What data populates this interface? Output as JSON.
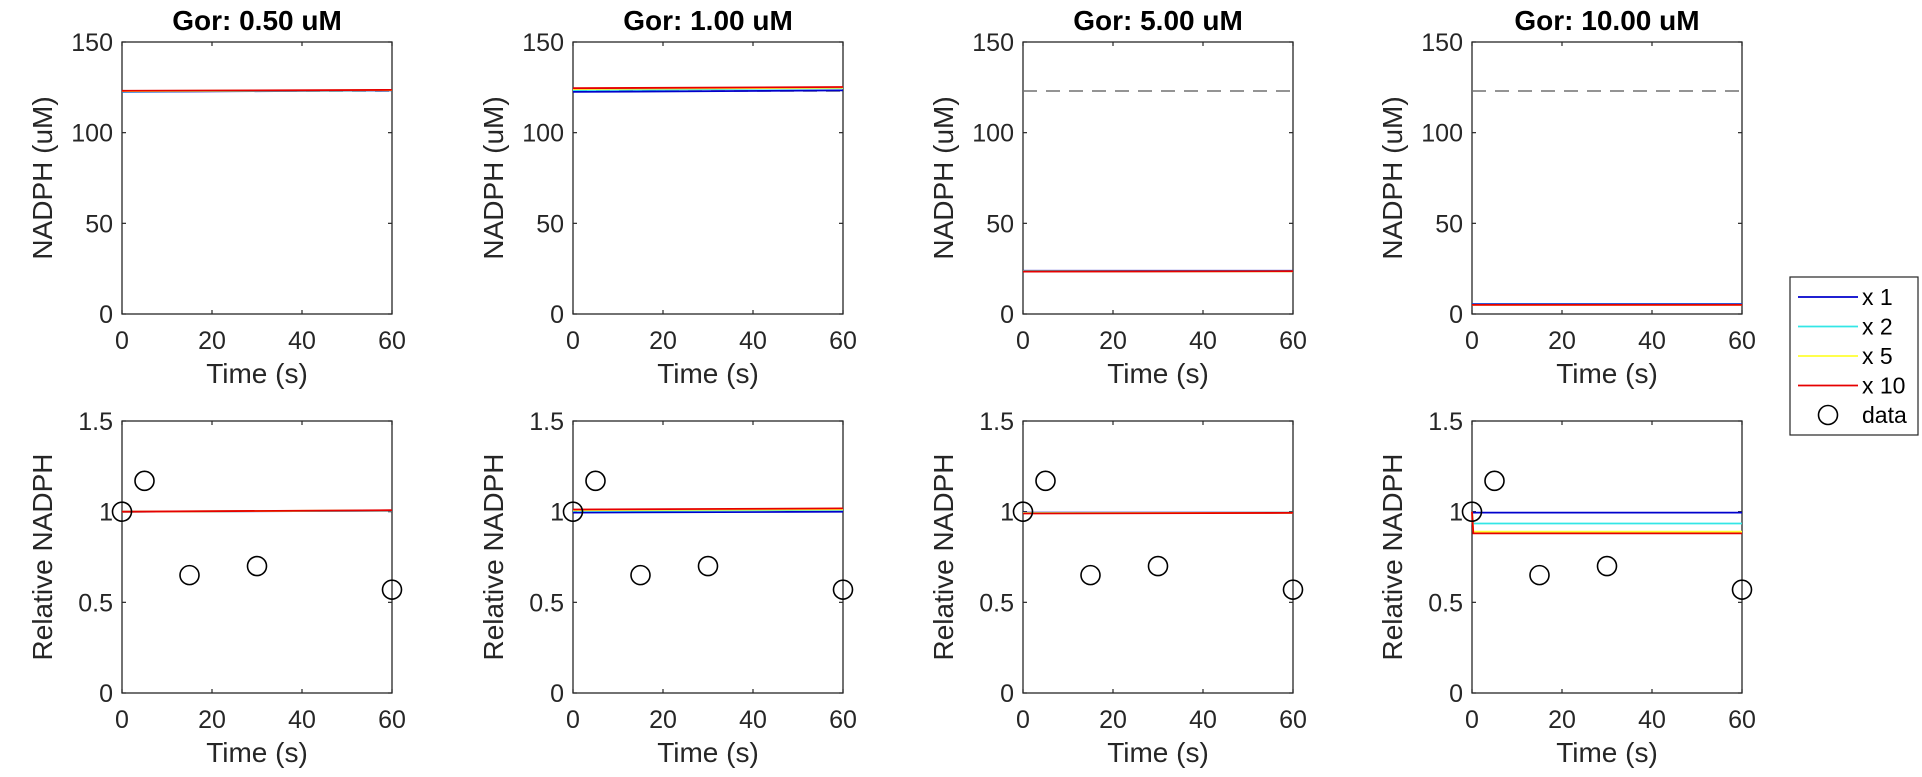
{
  "chart_data": {
    "type": "line",
    "legend": {
      "placement": "right",
      "entries": [
        {
          "label": "x 1",
          "kind": "line",
          "color": "#0000cc"
        },
        {
          "label": "x 2",
          "kind": "line",
          "color": "#33e6e6"
        },
        {
          "label": "x 5",
          "kind": "line",
          "color": "#ffff33"
        },
        {
          "label": "x 10",
          "kind": "line",
          "color": "#e60000"
        },
        {
          "label": "data",
          "kind": "marker",
          "color": "#000000"
        }
      ]
    },
    "panels": [
      {
        "id": "p11",
        "row": 0,
        "col": 0,
        "title": "Gor: 0.50 uM",
        "xlabel": "Time (s)",
        "ylabel": "NADPH (uM)",
        "xlim": [
          0,
          60
        ],
        "ylim": [
          0,
          150
        ],
        "xticks": [
          0,
          20,
          40,
          60
        ],
        "yticks": [
          0,
          50,
          100,
          150
        ],
        "yticklabels": [
          "0",
          "50",
          "100",
          "150"
        ],
        "reference": {
          "y": 123,
          "dashed": true
        },
        "series": [
          {
            "color": "#0000cc",
            "x": [
              0,
              60
            ],
            "y": [
              122.5,
              123.3
            ]
          },
          {
            "color": "#33e6e6",
            "x": [
              0,
              60
            ],
            "y": [
              122.7,
              123.4
            ]
          },
          {
            "color": "#ffff33",
            "x": [
              0,
              60
            ],
            "y": [
              122.9,
              123.5
            ]
          },
          {
            "color": "#e60000",
            "x": [
              0,
              60
            ],
            "y": [
              123.1,
              123.6
            ]
          }
        ],
        "markers": []
      },
      {
        "id": "p12",
        "row": 0,
        "col": 1,
        "title": "Gor: 1.00 uM",
        "xlabel": "Time (s)",
        "ylabel": "NADPH (uM)",
        "xlim": [
          0,
          60
        ],
        "ylim": [
          0,
          150
        ],
        "xticks": [
          0,
          20,
          40,
          60
        ],
        "yticks": [
          0,
          50,
          100,
          150
        ],
        "yticklabels": [
          "0",
          "50",
          "100",
          "150"
        ],
        "reference": {
          "y": 123,
          "dashed": true
        },
        "series": [
          {
            "color": "#0000cc",
            "x": [
              0,
              60
            ],
            "y": [
              122.5,
              123.3
            ]
          },
          {
            "color": "#33e6e6",
            "x": [
              0,
              60
            ],
            "y": [
              123.5,
              124.5
            ]
          },
          {
            "color": "#ffff33",
            "x": [
              0,
              60
            ],
            "y": [
              124.0,
              124.8
            ]
          },
          {
            "color": "#e60000",
            "x": [
              0,
              60
            ],
            "y": [
              124.5,
              125.2
            ]
          }
        ],
        "markers": []
      },
      {
        "id": "p13",
        "row": 0,
        "col": 2,
        "title": "Gor: 5.00 uM",
        "xlabel": "Time (s)",
        "ylabel": "NADPH (uM)",
        "xlim": [
          0,
          60
        ],
        "ylim": [
          0,
          150
        ],
        "xticks": [
          0,
          20,
          40,
          60
        ],
        "yticks": [
          0,
          50,
          100,
          150
        ],
        "yticklabels": [
          "0",
          "50",
          "100",
          "150"
        ],
        "reference": {
          "y": 123,
          "dashed": true
        },
        "series": [
          {
            "color": "#0000cc",
            "x": [
              0,
              60
            ],
            "y": [
              23.8,
              23.8
            ]
          },
          {
            "color": "#33e6e6",
            "x": [
              0,
              60
            ],
            "y": [
              23.6,
              23.6
            ]
          },
          {
            "color": "#ffff33",
            "x": [
              0,
              60
            ],
            "y": [
              23.5,
              23.5
            ]
          },
          {
            "color": "#e60000",
            "x": [
              0,
              60
            ],
            "y": [
              23.4,
              23.6
            ]
          }
        ],
        "markers": []
      },
      {
        "id": "p14",
        "row": 0,
        "col": 3,
        "title": "Gor: 10.00 uM",
        "xlabel": "Time (s)",
        "ylabel": "NADPH (uM)",
        "xlim": [
          0,
          60
        ],
        "ylim": [
          0,
          150
        ],
        "xticks": [
          0,
          20,
          40,
          60
        ],
        "yticks": [
          0,
          50,
          100,
          150
        ],
        "yticklabels": [
          "0",
          "50",
          "100",
          "150"
        ],
        "reference": {
          "y": 123,
          "dashed": true
        },
        "series": [
          {
            "color": "#0000cc",
            "x": [
              0,
              60
            ],
            "y": [
              5.5,
              5.5
            ]
          },
          {
            "color": "#33e6e6",
            "x": [
              0,
              60
            ],
            "y": [
              5.2,
              5.2
            ]
          },
          {
            "color": "#ffff33",
            "x": [
              0,
              60
            ],
            "y": [
              5.0,
              5.0
            ]
          },
          {
            "color": "#e60000",
            "x": [
              0,
              60
            ],
            "y": [
              5.0,
              5.0
            ]
          }
        ],
        "markers": []
      },
      {
        "id": "p21",
        "row": 1,
        "col": 0,
        "title": "",
        "xlabel": "Time (s)",
        "ylabel": "Relative NADPH",
        "xlim": [
          0,
          60
        ],
        "ylim": [
          0,
          1.5
        ],
        "xticks": [
          0,
          20,
          40,
          60
        ],
        "yticks": [
          0,
          0.5,
          1,
          1.5
        ],
        "yticklabels": [
          "0",
          "0.5",
          "1",
          "1.5"
        ],
        "reference": null,
        "series": [
          {
            "color": "#0000cc",
            "x": [
              0,
              60
            ],
            "y": [
              1.0,
              1.005
            ]
          },
          {
            "color": "#33e6e6",
            "x": [
              0,
              60
            ],
            "y": [
              1.0,
              1.006
            ]
          },
          {
            "color": "#ffff33",
            "x": [
              0,
              60
            ],
            "y": [
              1.0,
              1.007
            ]
          },
          {
            "color": "#e60000",
            "x": [
              0,
              60
            ],
            "y": [
              1.0,
              1.008
            ]
          }
        ],
        "markers": [
          {
            "x": 0,
            "y": 1.0
          },
          {
            "x": 5,
            "y": 1.17
          },
          {
            "x": 15,
            "y": 0.65
          },
          {
            "x": 30,
            "y": 0.7
          },
          {
            "x": 60,
            "y": 0.57
          }
        ]
      },
      {
        "id": "p22",
        "row": 1,
        "col": 1,
        "title": "",
        "xlabel": "Time (s)",
        "ylabel": "Relative NADPH",
        "xlim": [
          0,
          60
        ],
        "ylim": [
          0,
          1.5
        ],
        "xticks": [
          0,
          20,
          40,
          60
        ],
        "yticks": [
          0,
          0.5,
          1,
          1.5
        ],
        "yticklabels": [
          "0",
          "0.5",
          "1",
          "1.5"
        ],
        "reference": null,
        "series": [
          {
            "color": "#0000cc",
            "x": [
              0,
              60
            ],
            "y": [
              0.995,
              1.0
            ]
          },
          {
            "color": "#33e6e6",
            "x": [
              0,
              60
            ],
            "y": [
              1.004,
              1.01
            ]
          },
          {
            "color": "#ffff33",
            "x": [
              0,
              60
            ],
            "y": [
              1.008,
              1.013
            ]
          },
          {
            "color": "#e60000",
            "x": [
              0,
              60
            ],
            "y": [
              1.012,
              1.018
            ]
          }
        ],
        "markers": [
          {
            "x": 0,
            "y": 1.0
          },
          {
            "x": 5,
            "y": 1.17
          },
          {
            "x": 15,
            "y": 0.65
          },
          {
            "x": 30,
            "y": 0.7
          },
          {
            "x": 60,
            "y": 0.57
          }
        ]
      },
      {
        "id": "p23",
        "row": 1,
        "col": 2,
        "title": "",
        "xlabel": "Time (s)",
        "ylabel": "Relative NADPH",
        "xlim": [
          0,
          60
        ],
        "ylim": [
          0,
          1.5
        ],
        "xticks": [
          0,
          20,
          40,
          60
        ],
        "yticks": [
          0,
          0.5,
          1,
          1.5
        ],
        "yticklabels": [
          "0",
          "0.5",
          "1",
          "1.5"
        ],
        "reference": null,
        "series": [
          {
            "color": "#0000cc",
            "x": [
              0,
              60
            ],
            "y": [
              0.995,
              0.995
            ]
          },
          {
            "color": "#33e6e6",
            "x": [
              0,
              60
            ],
            "y": [
              0.993,
              0.994
            ]
          },
          {
            "color": "#ffff33",
            "x": [
              0,
              60
            ],
            "y": [
              0.992,
              0.994
            ]
          },
          {
            "color": "#e60000",
            "x": [
              0,
              60
            ],
            "y": [
              0.99,
              0.993
            ]
          }
        ],
        "markers": [
          {
            "x": 0,
            "y": 1.0
          },
          {
            "x": 5,
            "y": 1.17
          },
          {
            "x": 15,
            "y": 0.65
          },
          {
            "x": 30,
            "y": 0.7
          },
          {
            "x": 60,
            "y": 0.57
          }
        ]
      },
      {
        "id": "p24",
        "row": 1,
        "col": 3,
        "title": "",
        "xlabel": "Time (s)",
        "ylabel": "Relative NADPH",
        "xlim": [
          0,
          60
        ],
        "ylim": [
          0,
          1.5
        ],
        "xticks": [
          0,
          20,
          40,
          60
        ],
        "yticks": [
          0,
          0.5,
          1,
          1.5
        ],
        "yticklabels": [
          "0",
          "0.5",
          "1",
          "1.5"
        ],
        "reference": null,
        "series": [
          {
            "color": "#0000cc",
            "x": [
              0,
              0.3,
              60
            ],
            "y": [
              1.0,
              0.995,
              0.995
            ]
          },
          {
            "color": "#33e6e6",
            "x": [
              0,
              0.3,
              60
            ],
            "y": [
              1.0,
              0.935,
              0.935
            ]
          },
          {
            "color": "#ffff33",
            "x": [
              0,
              0.3,
              60
            ],
            "y": [
              1.0,
              0.89,
              0.89
            ]
          },
          {
            "color": "#e60000",
            "x": [
              0,
              0.3,
              60
            ],
            "y": [
              1.0,
              0.88,
              0.88
            ]
          }
        ],
        "markers": [
          {
            "x": 0,
            "y": 1.0
          },
          {
            "x": 5,
            "y": 1.17
          },
          {
            "x": 15,
            "y": 0.65
          },
          {
            "x": 30,
            "y": 0.7
          },
          {
            "x": 60,
            "y": 0.57
          }
        ]
      }
    ]
  }
}
